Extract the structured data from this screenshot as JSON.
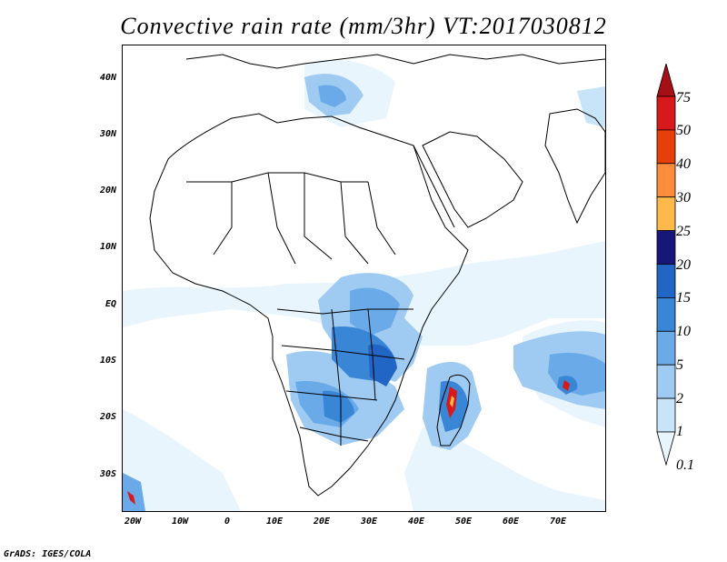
{
  "title": "Convective rain rate (mm/3hr) VT:2017030812",
  "footer": "GrADS: IGES/COLA",
  "map": {
    "lat_labels": [
      "40N",
      "30N",
      "20N",
      "10N",
      "EQ",
      "10S",
      "20S",
      "30S"
    ],
    "lon_labels": [
      "20W",
      "10W",
      "0",
      "10E",
      "20E",
      "30E",
      "40E",
      "50E",
      "60E",
      "70E"
    ]
  },
  "colorbar": {
    "levels": [
      "75",
      "50",
      "40",
      "30",
      "25",
      "20",
      "15",
      "10",
      "5",
      "2",
      "1",
      "0.1"
    ],
    "colors": [
      "#a50f15",
      "#d7191c",
      "#e6400a",
      "#fd8d3c",
      "#fdb94a",
      "#17177a",
      "#2166c4",
      "#3a86d6",
      "#6aaae8",
      "#9fcbf2",
      "#c8e4f8",
      "#e8f5fd"
    ]
  }
}
